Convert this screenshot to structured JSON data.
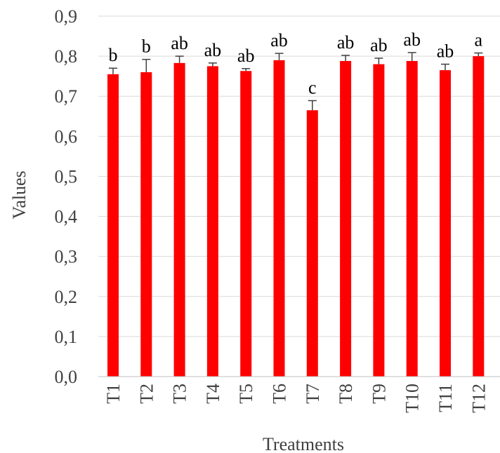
{
  "chart_data": {
    "type": "bar",
    "categories": [
      "T1",
      "T2",
      "T3",
      "T4",
      "T5",
      "T6",
      "T7",
      "T8",
      "T9",
      "T10",
      "T11",
      "T12"
    ],
    "values": [
      0.755,
      0.76,
      0.783,
      0.775,
      0.763,
      0.79,
      0.665,
      0.788,
      0.78,
      0.788,
      0.765,
      0.8
    ],
    "errors": [
      0.015,
      0.032,
      0.017,
      0.008,
      0.006,
      0.017,
      0.024,
      0.014,
      0.015,
      0.021,
      0.015,
      0.008
    ],
    "letters": [
      "b",
      "b",
      "ab",
      "ab",
      "ab",
      "ab",
      "c",
      "ab",
      "ab",
      "ab",
      "ab",
      "a"
    ],
    "xlabel": "Treatments",
    "ylabel": "Values",
    "ylim": [
      0,
      0.9
    ],
    "yticks": [
      "0,0",
      "0,1",
      "0,2",
      "0,3",
      "0,4",
      "0,5",
      "0,6",
      "0,7",
      "0,8",
      "0,9"
    ],
    "grid": true,
    "bar_color": "#ff0000"
  }
}
